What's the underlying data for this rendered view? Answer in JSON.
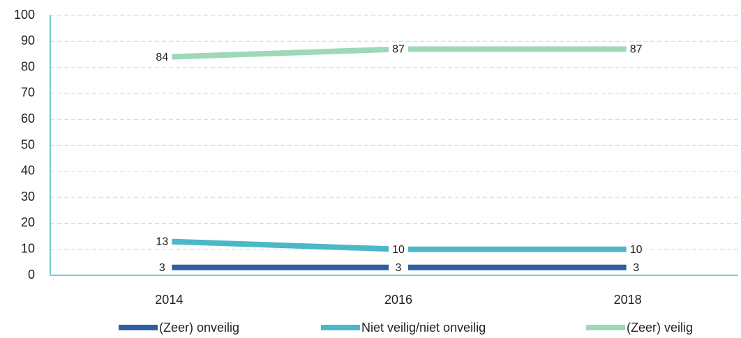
{
  "chart_data": {
    "type": "line",
    "categories": [
      "2014",
      "2016",
      "2018"
    ],
    "series": [
      {
        "name": "(Zeer) onveilig",
        "color": "#2e5fa3",
        "values": [
          3,
          3,
          3
        ]
      },
      {
        "name": "Niet veilig/niet onveilig",
        "color": "#4bb8c8",
        "values": [
          13,
          10,
          10
        ]
      },
      {
        "name": "(Zeer) veilig",
        "color": "#9dd9b5",
        "values": [
          84,
          87,
          87
        ]
      }
    ],
    "ylim": [
      0,
      100
    ],
    "yticks": [
      0,
      10,
      20,
      30,
      40,
      50,
      60,
      70,
      80,
      90,
      100
    ],
    "grid": true,
    "legend": "bottom"
  }
}
